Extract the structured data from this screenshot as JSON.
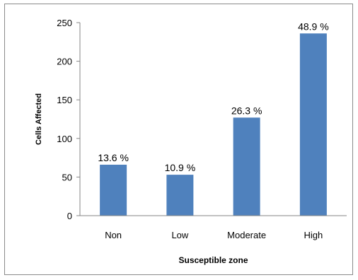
{
  "chart_data": {
    "type": "bar",
    "categories": [
      "Non",
      "Low",
      "Moderate",
      "High"
    ],
    "values": [
      66,
      53,
      127,
      236
    ],
    "data_labels": [
      "13.6 %",
      "10.9 %",
      "26.3 %",
      "48.9 %"
    ],
    "title": "",
    "xlabel": "Susceptible zone",
    "ylabel": "Cells Affected",
    "ylim": [
      0,
      250
    ],
    "yticks": [
      0,
      50,
      100,
      150,
      200,
      250
    ],
    "grid": false,
    "bar_color": "#4f81bd"
  }
}
